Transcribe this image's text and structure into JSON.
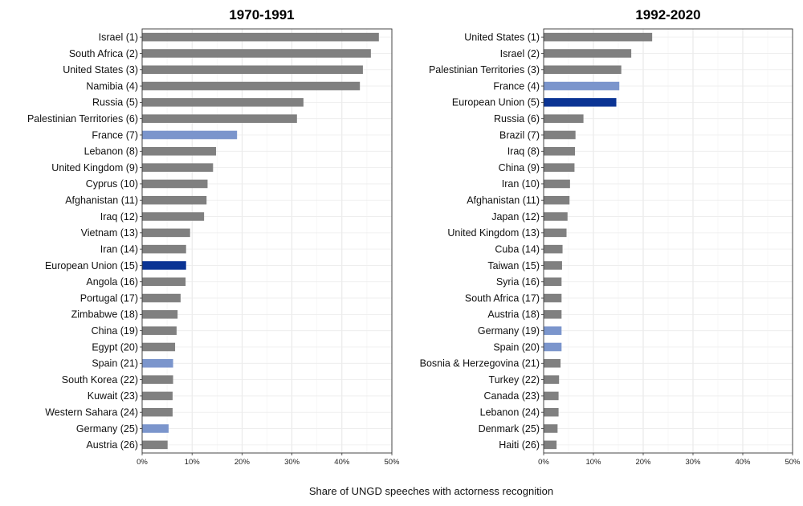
{
  "chart_data": [
    {
      "type": "bar",
      "orientation": "horizontal",
      "title": "1970-1991",
      "xlim": [
        0,
        50
      ],
      "ticks": [
        "0%",
        "10%",
        "20%",
        "30%",
        "40%",
        "50%"
      ],
      "categories": [
        "Israel (1)",
        "South Africa (2)",
        "United States (3)",
        "Namibia (4)",
        "Russia (5)",
        "Palestinian Territories (6)",
        "France (7)",
        "Lebanon (8)",
        "United Kingdom (9)",
        "Cyprus (10)",
        "Afghanistan (11)",
        "Iraq (12)",
        "Vietnam (13)",
        "Iran (14)",
        "European Union (15)",
        "Angola (16)",
        "Portugal (17)",
        "Zimbabwe (18)",
        "China (19)",
        "Egypt (20)",
        "Spain (21)",
        "South Korea (22)",
        "Kuwait (23)",
        "Western Sahara (24)",
        "Germany (25)",
        "Austria (26)"
      ],
      "values": [
        47.4,
        45.8,
        44.2,
        43.6,
        32.3,
        31.0,
        19.0,
        14.8,
        14.2,
        13.1,
        12.9,
        12.4,
        9.6,
        8.8,
        8.8,
        8.7,
        7.7,
        7.1,
        6.9,
        6.6,
        6.2,
        6.2,
        6.1,
        6.1,
        5.3,
        5.1
      ],
      "colors": [
        "#808080",
        "#808080",
        "#808080",
        "#808080",
        "#808080",
        "#808080",
        "#7b95cc",
        "#808080",
        "#808080",
        "#808080",
        "#808080",
        "#808080",
        "#808080",
        "#808080",
        "#0b3494",
        "#808080",
        "#808080",
        "#808080",
        "#808080",
        "#808080",
        "#7b95cc",
        "#808080",
        "#808080",
        "#808080",
        "#7b95cc",
        "#808080"
      ]
    },
    {
      "type": "bar",
      "orientation": "horizontal",
      "title": "1992-2020",
      "xlim": [
        0,
        50
      ],
      "ticks": [
        "0%",
        "10%",
        "20%",
        "30%",
        "40%",
        "50%"
      ],
      "categories": [
        "United States (1)",
        "Israel (2)",
        "Palestinian Territories (3)",
        "France (4)",
        "European Union (5)",
        "Russia (6)",
        "Brazil (7)",
        "Iraq (8)",
        "China (9)",
        "Iran (10)",
        "Afghanistan (11)",
        "Japan (12)",
        "United Kingdom (13)",
        "Cuba (14)",
        "Taiwan (15)",
        "Syria (16)",
        "South Africa (17)",
        "Austria (18)",
        "Germany (19)",
        "Spain (20)",
        "Bosnia & Herzegovina (21)",
        "Turkey (22)",
        "Canada (23)",
        "Lebanon (24)",
        "Denmark (25)",
        "Haiti (26)"
      ],
      "values": [
        21.8,
        17.6,
        15.6,
        15.2,
        14.6,
        8.0,
        6.4,
        6.3,
        6.2,
        5.3,
        5.2,
        4.8,
        4.6,
        3.8,
        3.7,
        3.6,
        3.6,
        3.6,
        3.6,
        3.6,
        3.4,
        3.1,
        3.0,
        3.0,
        2.8,
        2.6
      ],
      "colors": [
        "#808080",
        "#808080",
        "#808080",
        "#7b95cc",
        "#0b3494",
        "#808080",
        "#808080",
        "#808080",
        "#808080",
        "#808080",
        "#808080",
        "#808080",
        "#808080",
        "#808080",
        "#808080",
        "#808080",
        "#808080",
        "#808080",
        "#7b95cc",
        "#7b95cc",
        "#808080",
        "#808080",
        "#808080",
        "#808080",
        "#808080",
        "#808080"
      ]
    }
  ],
  "xlabel": "Share of UNGD speeches with actorness recognition"
}
